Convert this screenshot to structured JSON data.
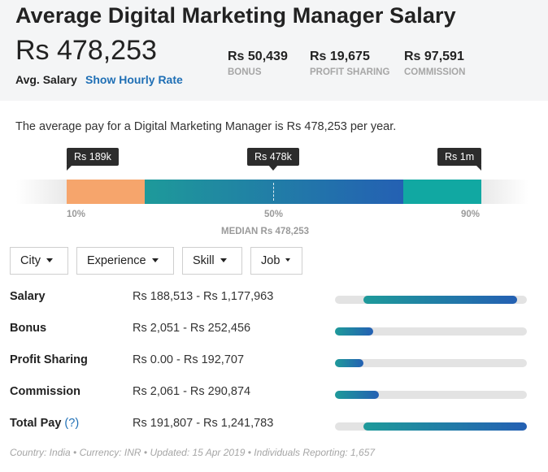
{
  "header": {
    "title": "Average Digital Marketing Manager Salary",
    "avg_value": "Rs 478,253",
    "avg_label": "Avg. Salary",
    "hourly_link": "Show Hourly Rate",
    "extras": [
      {
        "value": "Rs 50,439",
        "label": "BONUS"
      },
      {
        "value": "Rs 19,675",
        "label": "PROFIT SHARING"
      },
      {
        "value": "Rs 97,591",
        "label": "COMMISSION"
      }
    ]
  },
  "summary": "The average pay for a Digital Marketing Manager is Rs 478,253 per year.",
  "distribution": {
    "markers": {
      "low": "Rs 189k",
      "median": "Rs 478k",
      "high": "Rs 1m"
    },
    "percentiles": {
      "low": "10%",
      "mid": "50%",
      "high": "90%"
    },
    "median_label": "MEDIAN Rs 478,253"
  },
  "filters": {
    "city": "City",
    "experience": "Experience",
    "skill": "Skill",
    "job": "Job"
  },
  "rows": [
    {
      "label": "Salary",
      "range": "Rs 188,513 - Rs 1,177,963",
      "bar_start_pct": 15,
      "bar_end_pct": 95
    },
    {
      "label": "Bonus",
      "range": "Rs 2,051 - Rs 252,456",
      "bar_start_pct": 0,
      "bar_end_pct": 20
    },
    {
      "label": "Profit Sharing",
      "range": "Rs 0.00 - Rs 192,707",
      "bar_start_pct": 0,
      "bar_end_pct": 15
    },
    {
      "label": "Commission",
      "range": "Rs 2,061 - Rs 290,874",
      "bar_start_pct": 0,
      "bar_end_pct": 23
    },
    {
      "label": "Total Pay",
      "help": "(?)",
      "range": "Rs 191,807 - Rs 1,241,783",
      "bar_start_pct": 15,
      "bar_end_pct": 100
    }
  ],
  "footer": "Country: India • Currency: INR • Updated: 15 Apr 2019 • Individuals Reporting: 1,657",
  "colors": {
    "link": "#1f6fb5",
    "low": "#f6a56c",
    "mid_start": "#1e9a9a",
    "mid_end": "#2460b3",
    "high": "#11a8a2"
  }
}
